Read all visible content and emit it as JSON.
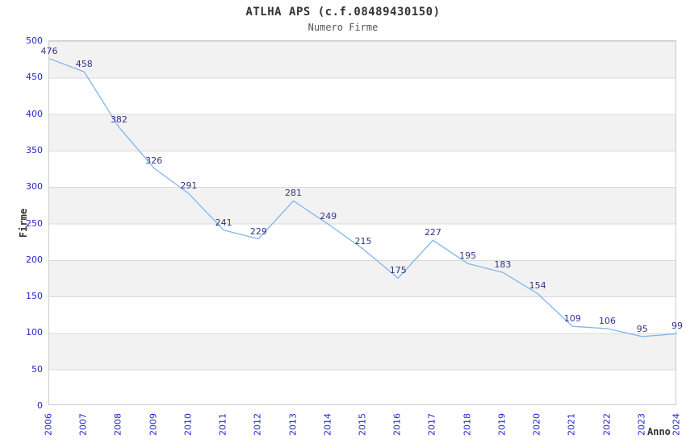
{
  "header": {
    "title": "ATLHA APS (c.f.08489430150)",
    "subtitle": "Numero Firme"
  },
  "chart_data": {
    "type": "line",
    "x": [
      2006,
      2007,
      2008,
      2009,
      2010,
      2011,
      2012,
      2013,
      2014,
      2015,
      2016,
      2017,
      2018,
      2019,
      2020,
      2021,
      2022,
      2023,
      2024
    ],
    "values": [
      476,
      458,
      382,
      326,
      291,
      241,
      229,
      281,
      249,
      215,
      175,
      227,
      195,
      183,
      154,
      109,
      106,
      95,
      99
    ],
    "title": "ATLHA APS (c.f.08489430150)",
    "subtitle": "Numero Firme",
    "xlabel": "Anno",
    "ylabel": "Firme",
    "ylim": [
      0,
      500
    ],
    "ytick_step": 50,
    "grid": true,
    "bands": true,
    "legend": "none",
    "colors": {
      "line": "#82b6ea",
      "data_label": "#333388",
      "tick_label": "#2525cc",
      "band": "#f2f2f2",
      "gridline": "#d9d9d9",
      "title": "#333333",
      "subtitle": "#555555"
    }
  }
}
